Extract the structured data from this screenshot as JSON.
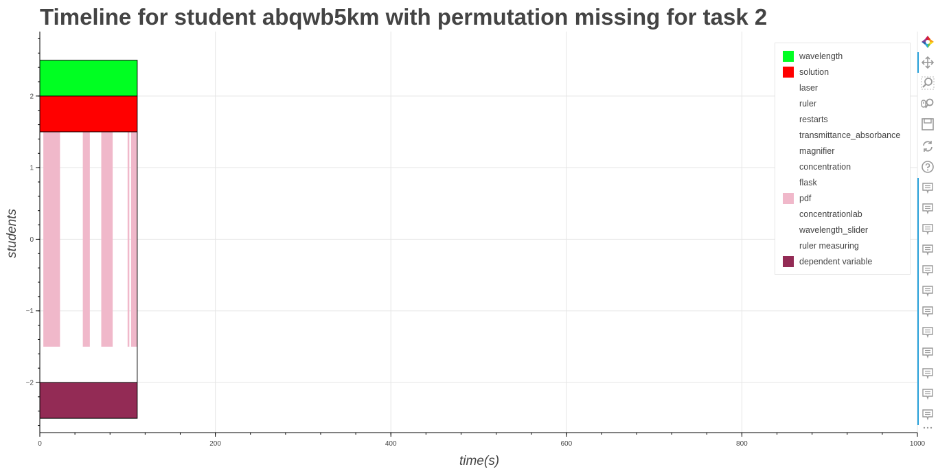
{
  "chart_data": {
    "type": "timeline",
    "title": "Timeline for student abqwb5km with permutation missing for task 2",
    "xlabel": "time(s)",
    "ylabel": "students",
    "xlim": [
      0,
      1000
    ],
    "ylim": [
      -2.7,
      2.9
    ],
    "x_ticks": [
      0,
      200,
      400,
      600,
      800,
      1000
    ],
    "y_ticks": [
      -2,
      -1,
      0,
      1,
      2
    ],
    "y_tick_labels": [
      "−2",
      "−1",
      "0",
      "1",
      "2"
    ],
    "grid": true,
    "legend_position": "top-right",
    "series": [
      {
        "name": "wavelength",
        "color": "#00ff22",
        "intervals": [
          {
            "x0": 0,
            "x1": 111,
            "y0": 2.0,
            "y1": 2.5
          }
        ]
      },
      {
        "name": "solution",
        "color": "#ff0000",
        "intervals": [
          {
            "x0": 0,
            "x1": 111,
            "y0": 1.5,
            "y1": 2.0
          }
        ]
      },
      {
        "name": "laser",
        "color": "#ffffff",
        "intervals": []
      },
      {
        "name": "ruler",
        "color": "#ffffff",
        "intervals": []
      },
      {
        "name": "restarts",
        "color": "#ffffff",
        "intervals": []
      },
      {
        "name": "transmittance_absorbance",
        "color": "#ffffff",
        "intervals": []
      },
      {
        "name": "magnifier",
        "color": "#ffffff",
        "intervals": []
      },
      {
        "name": "concentration",
        "color": "#ffffff",
        "intervals": []
      },
      {
        "name": "flask",
        "color": "#ffffff",
        "intervals": []
      },
      {
        "name": "pdf",
        "color": "#f0b8ca",
        "intervals": [
          {
            "x0": 4,
            "x1": 23,
            "y0": -1.5,
            "y1": 1.5
          },
          {
            "x0": 49,
            "x1": 57,
            "y0": -1.5,
            "y1": 1.5
          },
          {
            "x0": 70,
            "x1": 83,
            "y0": -1.5,
            "y1": 1.5
          },
          {
            "x0": 100,
            "x1": 102,
            "y0": -1.5,
            "y1": 1.5
          },
          {
            "x0": 104,
            "x1": 111,
            "y0": -1.5,
            "y1": 1.5
          }
        ]
      },
      {
        "name": "concentrationlab",
        "color": "#ffffff",
        "intervals": []
      },
      {
        "name": "wavelength_slider",
        "color": "#ffffff",
        "intervals": []
      },
      {
        "name": "ruler measuring",
        "color": "#ffffff",
        "intervals": []
      },
      {
        "name": "dependent variable",
        "color": "#932b55",
        "intervals": [
          {
            "x0": 0,
            "x1": 111,
            "y0": -2.5,
            "y1": -2.0
          }
        ]
      }
    ],
    "outline": {
      "x0": 0,
      "x1": 111,
      "y0": -2.5,
      "y1": 2.5
    }
  },
  "toolbar": {
    "tools": [
      {
        "icon": "bokeh-logo-icon"
      },
      {
        "icon": "pan-icon"
      },
      {
        "icon": "box-zoom-icon"
      },
      {
        "icon": "wheel-zoom-icon"
      },
      {
        "icon": "save-icon"
      },
      {
        "icon": "reset-icon"
      },
      {
        "icon": "help-icon"
      },
      {
        "icon": "hover-icon"
      },
      {
        "icon": "hover-icon"
      },
      {
        "icon": "hover-icon"
      },
      {
        "icon": "hover-icon"
      },
      {
        "icon": "hover-icon"
      },
      {
        "icon": "hover-icon"
      },
      {
        "icon": "hover-icon"
      },
      {
        "icon": "hover-icon"
      },
      {
        "icon": "hover-icon"
      },
      {
        "icon": "hover-icon"
      },
      {
        "icon": "hover-icon"
      },
      {
        "icon": "hover-icon"
      },
      {
        "icon": "more-icon"
      }
    ],
    "accent_color": "#26a0da"
  }
}
